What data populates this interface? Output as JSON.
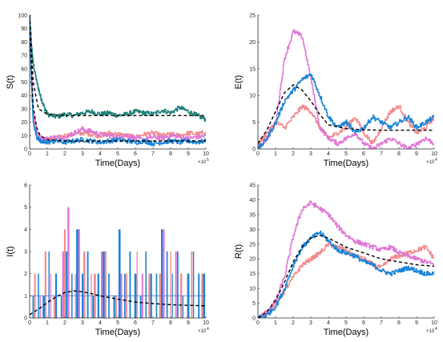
{
  "colors": {
    "teal": "#1a7f78",
    "pink": "#f28b8d",
    "magenta": "#e077d6",
    "blue": "#1a84d8",
    "mean": "#000000",
    "axis": "#262626"
  },
  "chart_data": [
    {
      "type": "line",
      "ylabel": "S(t)",
      "xlabel": "Time(Days)",
      "xlim": [
        0,
        10
      ],
      "ylim": [
        0,
        100
      ],
      "xticks": [
        "0",
        "1",
        "2",
        "3",
        "4",
        "5",
        "6",
        "7",
        "8",
        "9",
        "10"
      ],
      "yticks": [
        "0",
        "10",
        "20",
        "30",
        "40",
        "50",
        "60",
        "70",
        "80",
        "90",
        "100"
      ],
      "x_multiplier": "×10",
      "x_multiplier_exp": "5",
      "grid": false,
      "series": [
        {
          "color_key": "teal",
          "style": "stochastic",
          "x": [
            0,
            0.1,
            0.2,
            0.4,
            0.6,
            0.8,
            1,
            1.5,
            2,
            2.5,
            3,
            3.5,
            4,
            4.5,
            5,
            5.5,
            6,
            6.5,
            7,
            7.5,
            8,
            8.5,
            9,
            9.5,
            10
          ],
          "y": [
            100,
            78,
            64,
            50,
            40,
            32,
            26,
            24,
            26,
            25,
            27,
            28,
            26,
            27,
            25,
            26,
            28,
            27,
            26,
            29,
            27,
            31,
            28,
            25,
            22
          ]
        },
        {
          "color_key": "pink",
          "style": "stochastic",
          "x": [
            0,
            0.1,
            0.2,
            0.4,
            0.6,
            0.8,
            1,
            1.5,
            2,
            2.5,
            3,
            3.5,
            4,
            4.5,
            5,
            5.5,
            6,
            6.5,
            7,
            7.5,
            8,
            8.5,
            9,
            9.5,
            10
          ],
          "y": [
            100,
            55,
            25,
            12,
            8,
            6,
            7,
            8,
            10,
            11,
            12,
            11,
            10,
            12,
            11,
            10,
            9,
            11,
            12,
            10,
            11,
            10,
            12,
            11,
            13
          ]
        },
        {
          "color_key": "magenta",
          "style": "stochastic",
          "x": [
            0,
            0.1,
            0.2,
            0.4,
            0.6,
            0.8,
            1,
            1.5,
            2,
            2.5,
            3,
            3.5,
            4,
            4.5,
            5,
            5.5,
            6,
            6.5,
            7,
            7.5,
            8,
            8.5,
            9,
            9.5,
            10
          ],
          "y": [
            100,
            60,
            28,
            14,
            9,
            7,
            8,
            9,
            8,
            12,
            15,
            13,
            11,
            10,
            9,
            10,
            8,
            7,
            9,
            8,
            10,
            9,
            8,
            9,
            10
          ]
        },
        {
          "color_key": "blue",
          "style": "stochastic",
          "x": [
            0,
            0.1,
            0.2,
            0.4,
            0.6,
            0.8,
            1,
            1.5,
            2,
            2.5,
            3,
            3.5,
            4,
            4.5,
            5,
            5.5,
            6,
            6.5,
            7,
            7.5,
            8,
            8.5,
            9,
            9.5,
            10
          ],
          "y": [
            100,
            50,
            20,
            9,
            6,
            5,
            5,
            6,
            5,
            6,
            7,
            6,
            5,
            6,
            7,
            6,
            5,
            6,
            4,
            5,
            6,
            5,
            6,
            5,
            6
          ]
        },
        {
          "color_key": "mean",
          "style": "dashed",
          "x": [
            0,
            0.1,
            0.2,
            0.4,
            0.6,
            1,
            2,
            3,
            4,
            5,
            6,
            7,
            8,
            9,
            10
          ],
          "y": [
            100,
            60,
            32,
            16,
            10,
            7,
            6,
            6,
            6,
            6,
            6,
            6,
            6,
            6,
            6
          ]
        },
        {
          "color_key": "mean",
          "style": "dashed",
          "x": [
            0,
            0.2,
            0.5,
            1,
            2,
            4,
            6,
            8,
            10
          ],
          "y": [
            100,
            50,
            30,
            26,
            25,
            25,
            25,
            25,
            25
          ]
        }
      ]
    },
    {
      "type": "line",
      "ylabel": "E(t)",
      "xlabel": "Time(Days)",
      "xlim": [
        0,
        10
      ],
      "ylim": [
        0,
        25
      ],
      "xticks": [
        "0",
        "1",
        "2",
        "3",
        "4",
        "5",
        "6",
        "7",
        "8",
        "9",
        "10"
      ],
      "yticks": [
        "0",
        "5",
        "10",
        "15",
        "20",
        "25"
      ],
      "x_multiplier": "×10",
      "x_multiplier_exp": "4",
      "grid": false,
      "series": [
        {
          "color_key": "pink",
          "style": "stochastic",
          "x": [
            0,
            0.5,
            1,
            1.5,
            2,
            2.5,
            3,
            3.5,
            4,
            4.5,
            5,
            5.5,
            6,
            6.5,
            7,
            7.5,
            8,
            8.5,
            9,
            9.5,
            10
          ],
          "y": [
            1,
            3,
            5,
            4,
            6,
            8,
            7,
            4,
            2,
            3,
            4,
            6,
            3,
            1,
            4,
            7,
            8,
            5,
            3,
            4,
            6
          ]
        },
        {
          "color_key": "magenta",
          "style": "stochastic",
          "x": [
            0,
            0.5,
            1,
            1.5,
            2,
            2.5,
            3,
            3.5,
            4,
            4.5,
            5,
            5.5,
            6,
            6.5,
            7,
            7.5,
            8,
            8.5,
            9,
            9.5,
            10
          ],
          "y": [
            0,
            2,
            5,
            17,
            22,
            21,
            13,
            4,
            2,
            1,
            2,
            3,
            1,
            0,
            1,
            2,
            1,
            0,
            1,
            2,
            1
          ]
        },
        {
          "color_key": "blue",
          "style": "stochastic",
          "x": [
            0,
            0.5,
            1,
            1.5,
            2,
            2.5,
            3,
            3.5,
            4,
            4.5,
            5,
            5.5,
            6,
            6.5,
            7,
            7.5,
            8,
            8.5,
            9,
            9.5,
            10
          ],
          "y": [
            0,
            2,
            5,
            9,
            11,
            13,
            14,
            10,
            6,
            4,
            5,
            3,
            4,
            6,
            5,
            4,
            5,
            6,
            4,
            5,
            6
          ]
        },
        {
          "color_key": "mean",
          "style": "dashed",
          "x": [
            0,
            0.5,
            1,
            1.5,
            2,
            2.5,
            3,
            3.5,
            4,
            5,
            6,
            7,
            8,
            9,
            10
          ],
          "y": [
            1,
            3.5,
            7,
            10.5,
            12,
            11,
            9,
            6.5,
            4.5,
            3.8,
            3.6,
            3.5,
            3.5,
            3.5,
            3.5
          ]
        }
      ]
    },
    {
      "type": "line",
      "ylabel": "I(t)",
      "xlabel": "Time(Days)",
      "xlim": [
        0,
        10
      ],
      "ylim": [
        0,
        6
      ],
      "xticks": [
        "0",
        "1",
        "2",
        "3",
        "4",
        "5",
        "6",
        "7",
        "8",
        "9",
        "10"
      ],
      "yticks": [
        "0",
        "1",
        "2",
        "3",
        "4",
        "5",
        "6"
      ],
      "x_multiplier": "×10",
      "x_multiplier_exp": "4",
      "grid": false,
      "series": [
        {
          "color_key": "pink",
          "style": "spikes",
          "x": [
            0.3,
            0.9,
            1.4,
            2.0,
            2.6,
            3.1,
            3.7,
            4.3,
            4.9,
            5.5,
            6.1,
            6.8,
            7.4,
            8.0,
            8.6,
            9.2,
            9.8
          ],
          "y": [
            2,
            3,
            1,
            4,
            2,
            3,
            2,
            3,
            1,
            2,
            3,
            2,
            2,
            3,
            2,
            3,
            2
          ]
        },
        {
          "color_key": "magenta",
          "style": "spikes",
          "x": [
            0.6,
            1.2,
            1.9,
            2.2,
            2.8,
            3.5,
            4.1,
            5.2,
            6.4,
            7.6,
            8.3,
            9.0
          ],
          "y": [
            1,
            2,
            3,
            5,
            4,
            2,
            3,
            2,
            2,
            4,
            3,
            2
          ]
        },
        {
          "color_key": "blue",
          "style": "spikes",
          "x": [
            0.2,
            0.5,
            0.8,
            1.1,
            1.5,
            1.8,
            2.1,
            2.4,
            2.7,
            3.0,
            3.3,
            3.6,
            3.9,
            4.2,
            4.5,
            4.8,
            5.1,
            5.4,
            5.7,
            6.0,
            6.3,
            6.6,
            6.9,
            7.2,
            7.5,
            7.8,
            8.1,
            8.4,
            8.7,
            9.0,
            9.3,
            9.6,
            9.9
          ],
          "y": [
            1,
            2,
            1,
            3,
            2,
            1,
            3,
            2,
            4,
            2,
            3,
            1,
            2,
            3,
            2,
            1,
            4,
            2,
            3,
            2,
            1,
            3,
            2,
            2,
            4,
            3,
            2,
            3,
            1,
            2,
            3,
            2,
            2
          ]
        },
        {
          "color_key": "mean",
          "style": "dashed",
          "x": [
            0,
            0.3,
            0.6,
            1,
            1.5,
            2,
            2.5,
            3,
            3.5,
            4,
            5,
            6,
            7,
            8,
            9,
            10
          ],
          "y": [
            0.15,
            0.3,
            0.45,
            0.7,
            0.95,
            1.15,
            1.22,
            1.18,
            1.1,
            1.0,
            0.85,
            0.72,
            0.65,
            0.6,
            0.57,
            0.55
          ]
        }
      ]
    },
    {
      "type": "line",
      "ylabel": "R(t)",
      "xlabel": "Time(Days)",
      "xlim": [
        0,
        10
      ],
      "ylim": [
        0,
        45
      ],
      "xticks": [
        "0",
        "1",
        "2",
        "3",
        "4",
        "5",
        "6",
        "7",
        "8",
        "9",
        "10"
      ],
      "yticks": [
        "0",
        "5",
        "10",
        "15",
        "20",
        "25",
        "30",
        "35",
        "40",
        "45"
      ],
      "x_multiplier": "×10",
      "x_multiplier_exp": "4",
      "grid": false,
      "series": [
        {
          "color_key": "pink",
          "style": "stochastic",
          "x": [
            0,
            0.5,
            1,
            1.5,
            2,
            2.5,
            3,
            3.5,
            4,
            4.5,
            5,
            5.5,
            6,
            6.5,
            7,
            7.5,
            8,
            8.5,
            9,
            9.5,
            10
          ],
          "y": [
            0,
            2,
            5,
            9,
            14,
            18,
            20,
            22,
            25,
            24,
            23,
            21,
            20,
            18,
            17,
            20,
            21,
            22,
            23,
            24,
            20
          ]
        },
        {
          "color_key": "magenta",
          "style": "stochastic",
          "x": [
            0,
            0.5,
            1,
            1.5,
            2,
            2.5,
            3,
            3.5,
            4,
            4.5,
            5,
            5.5,
            6,
            6.5,
            7,
            7.5,
            8,
            8.5,
            9,
            9.5,
            10
          ],
          "y": [
            0,
            2,
            6,
            14,
            28,
            37,
            39,
            37,
            35,
            31,
            28,
            26,
            25,
            24,
            23,
            24,
            22,
            21,
            20,
            19,
            18
          ]
        },
        {
          "color_key": "blue",
          "style": "stochastic",
          "x": [
            0,
            0.5,
            1,
            1.5,
            2,
            2.5,
            3,
            3.5,
            4,
            4.5,
            5,
            5.5,
            6,
            6.5,
            7,
            7.5,
            8,
            8.5,
            9,
            9.5,
            10
          ],
          "y": [
            0,
            1,
            4,
            10,
            18,
            24,
            27,
            29,
            26,
            23,
            22,
            21,
            19,
            18,
            16,
            15,
            16,
            17,
            16,
            15,
            15
          ]
        },
        {
          "color_key": "mean",
          "style": "dashed",
          "x": [
            0,
            0.5,
            1,
            1.5,
            2,
            2.5,
            3,
            3.5,
            4,
            4.5,
            5,
            6,
            7,
            8,
            9,
            10
          ],
          "y": [
            0,
            2,
            6,
            12,
            19,
            24,
            27,
            28,
            27,
            25.5,
            24,
            22,
            20,
            19,
            18,
            17.5
          ]
        }
      ]
    }
  ]
}
